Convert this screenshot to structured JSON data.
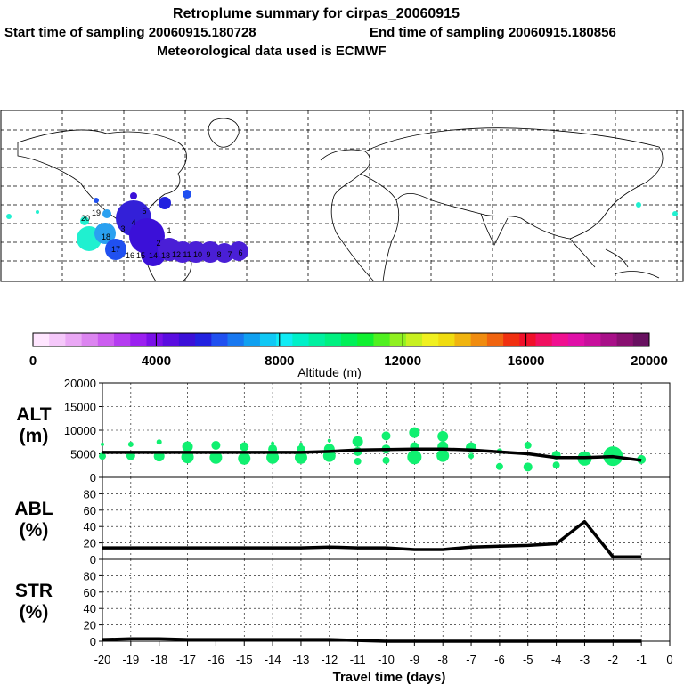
{
  "header": {
    "title": "Retroplume summary for cirpas_20060915",
    "start_label": "Start time of sampling 20060915.180728",
    "end_label": "End time of sampling 20060915.180856",
    "met_label": "Meteorological data used is ECMWF"
  },
  "map": {
    "plume_color": "#4a1fd6",
    "plume_labels": [
      "20",
      "19",
      "18",
      "17",
      "16",
      "15",
      "14",
      "13",
      "12",
      "11",
      "10",
      "9",
      "8",
      "7",
      "6",
      "5",
      "4",
      "3",
      "2",
      "1"
    ]
  },
  "colorbar": {
    "title": "Altitude (m)",
    "ticks": [
      "0",
      "4000",
      "8000",
      "12000",
      "16000",
      "20000"
    ],
    "range": [
      0,
      20000
    ],
    "colors": [
      "#ffe6ff",
      "#f5c8fa",
      "#eaa8f5",
      "#dc85f0",
      "#cc5ef0",
      "#b53cf0",
      "#9b20f0",
      "#7a10e8",
      "#5a0de0",
      "#3b10d8",
      "#2222e0",
      "#2050f0",
      "#1878f0",
      "#10a0f0",
      "#10c8f5",
      "#10ecf5",
      "#00f0c8",
      "#00f0a0",
      "#00f080",
      "#00f058",
      "#10f030",
      "#50f020",
      "#90f020",
      "#c8f020",
      "#f0f020",
      "#f0dc10",
      "#f0b410",
      "#f08c10",
      "#f06410",
      "#f03010",
      "#f0102a",
      "#f01060",
      "#f01090",
      "#e010a8",
      "#c8109c",
      "#a81088",
      "#881070",
      "#681060"
    ]
  },
  "chart_data": [
    {
      "type": "line",
      "panel": "ALT",
      "ylabel_line1": "ALT",
      "ylabel_line2": "(m)",
      "ylim": [
        0,
        20000
      ],
      "yticks": [
        "0",
        "5000",
        "10000",
        "15000",
        "20000"
      ],
      "x": [
        -20,
        -19,
        -18,
        -17,
        -16,
        -15,
        -14,
        -13,
        -12,
        -11,
        -10,
        -9,
        -8,
        -7,
        -6,
        -5,
        -4,
        -3,
        -2,
        -1
      ],
      "series": [
        {
          "name": "mean altitude",
          "values": [
            5300,
            5300,
            5300,
            5300,
            5300,
            5300,
            5300,
            5300,
            5500,
            5800,
            5900,
            6000,
            6000,
            5800,
            5400,
            5000,
            4200,
            4200,
            4400,
            3600
          ]
        }
      ],
      "percentile_points": [
        {
          "x": -20,
          "y": 7000,
          "s": 2
        },
        {
          "x": -20,
          "y": 4500,
          "s": 4
        },
        {
          "x": -19,
          "y": 7000,
          "s": 3
        },
        {
          "x": -19,
          "y": 4600,
          "s": 5
        },
        {
          "x": -18,
          "y": 7500,
          "s": 3
        },
        {
          "x": -18,
          "y": 4500,
          "s": 6
        },
        {
          "x": -17,
          "y": 6500,
          "s": 6
        },
        {
          "x": -17,
          "y": 4300,
          "s": 7
        },
        {
          "x": -16,
          "y": 6800,
          "s": 5
        },
        {
          "x": -16,
          "y": 4200,
          "s": 7
        },
        {
          "x": -15,
          "y": 6500,
          "s": 5
        },
        {
          "x": -15,
          "y": 4000,
          "s": 7
        },
        {
          "x": -14,
          "y": 7200,
          "s": 2
        },
        {
          "x": -14,
          "y": 6000,
          "s": 5
        },
        {
          "x": -14,
          "y": 4200,
          "s": 7
        },
        {
          "x": -13,
          "y": 7000,
          "s": 2
        },
        {
          "x": -13,
          "y": 5900,
          "s": 5
        },
        {
          "x": -13,
          "y": 4200,
          "s": 7
        },
        {
          "x": -12,
          "y": 7800,
          "s": 2
        },
        {
          "x": -12,
          "y": 6000,
          "s": 6
        },
        {
          "x": -12,
          "y": 4600,
          "s": 7
        },
        {
          "x": -11,
          "y": 7600,
          "s": 6
        },
        {
          "x": -11,
          "y": 5500,
          "s": 5
        },
        {
          "x": -11,
          "y": 3400,
          "s": 4
        },
        {
          "x": -10,
          "y": 8800,
          "s": 5
        },
        {
          "x": -10,
          "y": 6000,
          "s": 5
        },
        {
          "x": -10,
          "y": 3600,
          "s": 4
        },
        {
          "x": -9,
          "y": 9500,
          "s": 6
        },
        {
          "x": -9,
          "y": 6500,
          "s": 5
        },
        {
          "x": -9,
          "y": 4300,
          "s": 8
        },
        {
          "x": -8,
          "y": 8700,
          "s": 6
        },
        {
          "x": -8,
          "y": 6500,
          "s": 6
        },
        {
          "x": -8,
          "y": 4600,
          "s": 7
        },
        {
          "x": -7,
          "y": 6300,
          "s": 6
        },
        {
          "x": -7,
          "y": 4500,
          "s": 3
        },
        {
          "x": -6,
          "y": 5600,
          "s": 3
        },
        {
          "x": -6,
          "y": 2300,
          "s": 4
        },
        {
          "x": -5,
          "y": 6800,
          "s": 4
        },
        {
          "x": -5,
          "y": 2200,
          "s": 5
        },
        {
          "x": -4,
          "y": 4700,
          "s": 5
        },
        {
          "x": -4,
          "y": 2600,
          "s": 4
        },
        {
          "x": -3,
          "y": 4000,
          "s": 8
        },
        {
          "x": -2,
          "y": 4500,
          "s": 11
        },
        {
          "x": -1,
          "y": 3800,
          "s": 5
        }
      ]
    },
    {
      "type": "line",
      "panel": "ABL",
      "ylabel_line1": "ABL",
      "ylabel_line2": "(%)",
      "ylim": [
        0,
        100
      ],
      "yticks": [
        "0",
        "20",
        "40",
        "60",
        "80"
      ],
      "x": [
        -20,
        -19,
        -18,
        -17,
        -16,
        -15,
        -14,
        -13,
        -12,
        -11,
        -10,
        -9,
        -8,
        -7,
        -6,
        -5,
        -4,
        -3,
        -2,
        -1
      ],
      "series": [
        {
          "name": "fraction in ABL",
          "values": [
            14,
            14,
            14,
            14,
            14,
            14,
            14,
            14,
            15,
            14,
            14,
            12,
            12,
            15,
            16,
            17,
            19,
            46,
            3,
            3
          ]
        }
      ]
    },
    {
      "type": "line",
      "panel": "STR",
      "ylabel_line1": "STR",
      "ylabel_line2": "(%)",
      "ylim": [
        0,
        100
      ],
      "yticks": [
        "0",
        "20",
        "40",
        "60",
        "80"
      ],
      "x": [
        -20,
        -19,
        -18,
        -17,
        -16,
        -15,
        -14,
        -13,
        -12,
        -11,
        -10,
        -9,
        -8,
        -7,
        -6,
        -5,
        -4,
        -3,
        -2,
        -1
      ],
      "series": [
        {
          "name": "fraction in stratosphere",
          "values": [
            2,
            3,
            3,
            2,
            2,
            2,
            2,
            2,
            2,
            1,
            0,
            0,
            0,
            0,
            0,
            0,
            0,
            0,
            0,
            0
          ]
        }
      ]
    }
  ],
  "xaxis": {
    "title": "Travel time (days)",
    "tick_labels": [
      "-20",
      "-19",
      "-18",
      "-17",
      "-16",
      "-15",
      "-14",
      "-13",
      "-12",
      "-11",
      "-10",
      "-9",
      "-8",
      "-7",
      "-6",
      "-5",
      "-4",
      "-3",
      "-2",
      "-1",
      "0"
    ]
  }
}
